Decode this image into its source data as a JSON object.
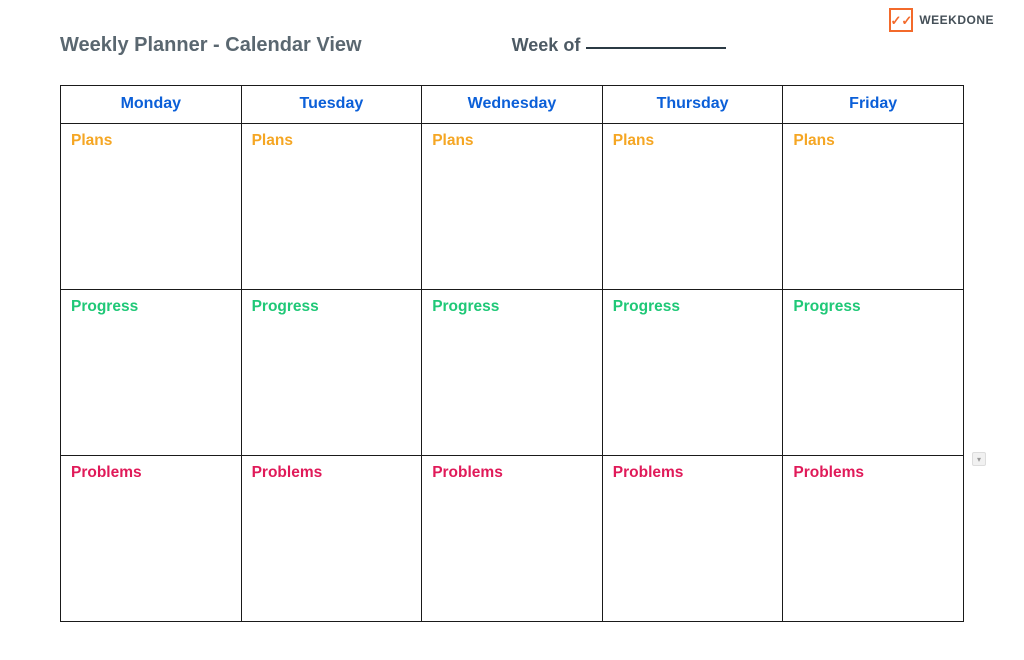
{
  "brand": {
    "icon_glyph": "✓✓",
    "name": "WEEKDONE",
    "border_color": "#f36a2b"
  },
  "header": {
    "title": "Weekly Planner - Calendar View",
    "week_of_label": "Week of"
  },
  "table": {
    "days": [
      "Monday",
      "Tuesday",
      "Wednesday",
      "Thursday",
      "Friday"
    ],
    "day_header_color": "#0b5fd8",
    "rows": [
      {
        "label": "Plans",
        "color": "#f5a623"
      },
      {
        "label": "Progress",
        "color": "#1fc877"
      },
      {
        "label": "Problems",
        "color": "#e01a59"
      }
    ],
    "border_color": "#1a1a1a",
    "background_color": "#ffffff"
  }
}
